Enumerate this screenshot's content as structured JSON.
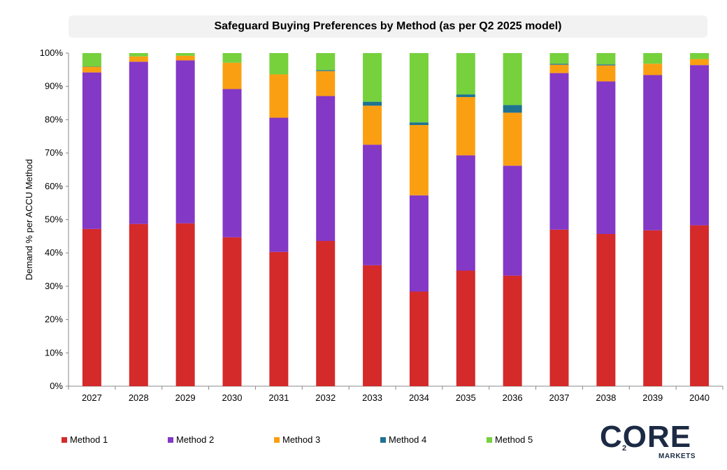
{
  "chart_data": {
    "type": "bar",
    "stacked": true,
    "title": "Safeguard Buying Preferences by Method (as per Q2 2025 model)",
    "ylabel": "Demand % per ACCU Method",
    "xlabel": "",
    "ylim": [
      0,
      100
    ],
    "y_ticks": [
      "0%",
      "10%",
      "20%",
      "30%",
      "40%",
      "50%",
      "60%",
      "70%",
      "80%",
      "90%",
      "100%"
    ],
    "categories": [
      "2027",
      "2028",
      "2029",
      "2030",
      "2031",
      "2032",
      "2033",
      "2034",
      "2035",
      "2036",
      "2037",
      "2038",
      "2039",
      "2040"
    ],
    "series": [
      {
        "name": "Method 1",
        "color": "#d42a2a",
        "values": [
          47.2,
          48.7,
          48.9,
          44.7,
          40.3,
          43.6,
          36.3,
          28.4,
          34.7,
          33.2,
          47.0,
          45.7,
          46.8,
          48.3
        ]
      },
      {
        "name": "Method 2",
        "color": "#8338c6",
        "values": [
          47.0,
          48.7,
          48.9,
          44.5,
          40.3,
          43.5,
          36.2,
          28.9,
          34.6,
          33.0,
          47.0,
          45.8,
          46.6,
          48.1
        ]
      },
      {
        "name": "Method 3",
        "color": "#fb9f12",
        "values": [
          1.7,
          1.6,
          1.4,
          7.9,
          13.0,
          7.5,
          11.7,
          21.1,
          17.5,
          15.9,
          2.5,
          4.8,
          3.4,
          1.8
        ]
      },
      {
        "name": "Method 4",
        "color": "#1f7391",
        "values": [
          0.1,
          0.0,
          0.0,
          0.0,
          0.0,
          0.3,
          1.2,
          0.8,
          0.8,
          2.3,
          0.3,
          0.3,
          0.0,
          0.0
        ]
      },
      {
        "name": "Method 5",
        "color": "#76d13d",
        "values": [
          4.0,
          1.0,
          0.8,
          2.9,
          6.4,
          5.1,
          14.6,
          20.8,
          12.4,
          15.6,
          3.2,
          3.4,
          3.2,
          1.8
        ]
      }
    ],
    "grid": false,
    "legend_position": "bottom"
  },
  "logo": {
    "main": "CORE",
    "sub": "2",
    "bottom": "MARKETS"
  }
}
